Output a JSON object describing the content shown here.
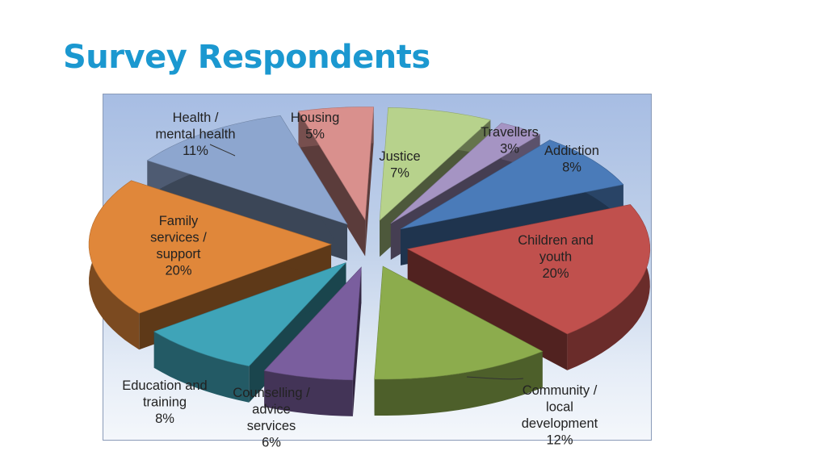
{
  "title": "Survey Respondents",
  "chart_data": {
    "type": "pie",
    "title": "",
    "style": "exploded 3D pie",
    "categories": [
      "Justice",
      "Travellers",
      "Addiction",
      "Children and youth",
      "Community / local development",
      "Counselling / advice services",
      "Education and training",
      "Family services / support",
      "Health / mental health",
      "Housing"
    ],
    "values": [
      7,
      3,
      8,
      20,
      12,
      6,
      8,
      20,
      11,
      5
    ],
    "units": "%",
    "slices": [
      {
        "name": "Justice",
        "label_lines": [
          "Justice",
          "7%"
        ],
        "value": 7,
        "color": "#b7d28c"
      },
      {
        "name": "Travellers",
        "label_lines": [
          "Travellers",
          "3%"
        ],
        "value": 3,
        "color": "#a594c3"
      },
      {
        "name": "Addiction",
        "label_lines": [
          "Addiction",
          "8%"
        ],
        "value": 8,
        "color": "#4a7bb9"
      },
      {
        "name": "Children and youth",
        "label_lines": [
          "Children and",
          "youth",
          "20%"
        ],
        "value": 20,
        "color": "#c0504d"
      },
      {
        "name": "Community / local development",
        "label_lines": [
          "Community /",
          "local",
          "development",
          "12%"
        ],
        "value": 12,
        "color": "#8cac4d"
      },
      {
        "name": "Counselling / advice services",
        "label_lines": [
          "Counselling /",
          "advice",
          "services",
          "6%"
        ],
        "value": 6,
        "color": "#7a5e9e"
      },
      {
        "name": "Education and training",
        "label_lines": [
          "Education and",
          "training",
          "8%"
        ],
        "value": 8,
        "color": "#3fa4b8"
      },
      {
        "name": "Family services / support",
        "label_lines": [
          "Family",
          "services /",
          "support",
          "20%"
        ],
        "value": 20,
        "color": "#e0873a"
      },
      {
        "name": "Health / mental health",
        "label_lines": [
          "Health /",
          "mental health",
          "11%"
        ],
        "value": 11,
        "color": "#8da6cf"
      },
      {
        "name": "Housing",
        "label_lines": [
          "Housing",
          "5%"
        ],
        "value": 5,
        "color": "#d9908d"
      }
    ]
  }
}
